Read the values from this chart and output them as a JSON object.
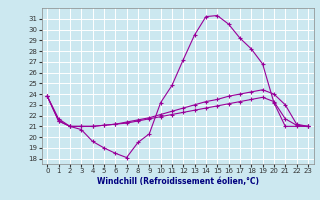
{
  "xlabel": "Windchill (Refroidissement éolien,°C)",
  "bg_color": "#cce8f0",
  "grid_color": "#ffffff",
  "line_color": "#990099",
  "xlim": [
    -0.5,
    23.5
  ],
  "ylim": [
    17.5,
    32.0
  ],
  "xticks": [
    0,
    1,
    2,
    3,
    4,
    5,
    6,
    7,
    8,
    9,
    10,
    11,
    12,
    13,
    14,
    15,
    16,
    17,
    18,
    19,
    20,
    21,
    22,
    23
  ],
  "yticks": [
    18,
    19,
    20,
    21,
    22,
    23,
    24,
    25,
    26,
    27,
    28,
    29,
    30,
    31
  ],
  "line1_x": [
    0,
    1,
    2,
    3,
    4,
    5,
    6,
    7,
    8,
    9,
    10,
    11,
    12,
    13,
    14,
    15,
    16,
    17,
    18,
    19,
    20,
    21,
    22,
    23
  ],
  "line1_y": [
    23.8,
    21.7,
    21.0,
    20.7,
    19.6,
    19.0,
    18.5,
    18.1,
    19.5,
    20.3,
    23.2,
    24.8,
    27.2,
    29.5,
    31.2,
    31.3,
    30.5,
    29.2,
    28.2,
    26.8,
    23.2,
    21.0,
    21.0,
    21.0
  ],
  "line2_x": [
    0,
    1,
    2,
    3,
    4,
    5,
    6,
    7,
    8,
    9,
    10,
    11,
    12,
    13,
    14,
    15,
    16,
    17,
    18,
    19,
    20,
    21,
    22,
    23
  ],
  "line2_y": [
    23.8,
    21.5,
    21.0,
    21.0,
    21.0,
    21.1,
    21.2,
    21.4,
    21.6,
    21.8,
    22.1,
    22.4,
    22.7,
    23.0,
    23.3,
    23.5,
    23.8,
    24.0,
    24.2,
    24.4,
    24.0,
    23.0,
    21.2,
    21.0
  ],
  "line3_x": [
    0,
    1,
    2,
    3,
    4,
    5,
    6,
    7,
    8,
    9,
    10,
    11,
    12,
    13,
    14,
    15,
    16,
    17,
    18,
    19,
    20,
    21,
    22,
    23
  ],
  "line3_y": [
    23.8,
    21.5,
    21.0,
    21.0,
    21.0,
    21.1,
    21.2,
    21.3,
    21.5,
    21.7,
    21.9,
    22.1,
    22.3,
    22.5,
    22.7,
    22.9,
    23.1,
    23.3,
    23.5,
    23.7,
    23.3,
    21.7,
    21.1,
    21.0
  ],
  "xlabel_color": "#000080",
  "xlabel_fontsize": 5.5,
  "tick_labelsize": 5,
  "tick_color": "#333333",
  "spine_color": "#888888"
}
